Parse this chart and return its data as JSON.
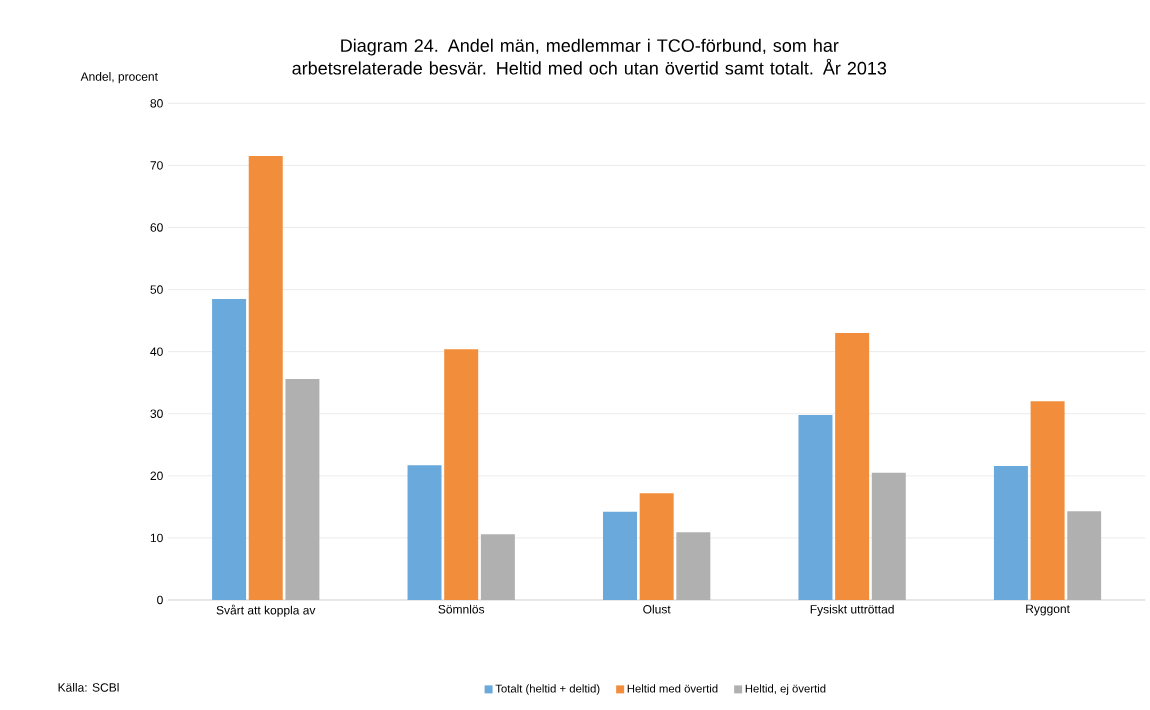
{
  "chart_data": {
    "type": "bar",
    "title": "Diagram 24. Andel män, medlemmar i TCO-förbund, som har arbetsrelaterade besvär. Heltid med och utan övertid samt totalt. År 2013",
    "ylabel": "Andel, procent",
    "categories": [
      "Svårt att koppla av",
      "Sömnlös",
      "Olust",
      "Fysiskt uttröttad",
      "Ryggont"
    ],
    "series": [
      {
        "name": "Totalt (heltid + deltid)",
        "color": "#6aa9dc",
        "values": [
          48.5,
          21.7,
          14.2,
          29.8,
          21.6
        ]
      },
      {
        "name": "Heltid med övertid",
        "color": "#f28e3b",
        "values": [
          71.5,
          40.4,
          17.2,
          43.0,
          32.0
        ]
      },
      {
        "name": "Heltid, ej övertid",
        "color": "#b0b0b0",
        "values": [
          35.6,
          10.6,
          10.9,
          20.5,
          14.3
        ]
      }
    ],
    "ylim": [
      0,
      80
    ],
    "yticks": [
      0,
      10,
      20,
      30,
      40,
      50,
      60,
      70,
      80
    ],
    "grid": "y",
    "legend": "bottom",
    "annotations": [
      "Källa: SCBl"
    ]
  }
}
